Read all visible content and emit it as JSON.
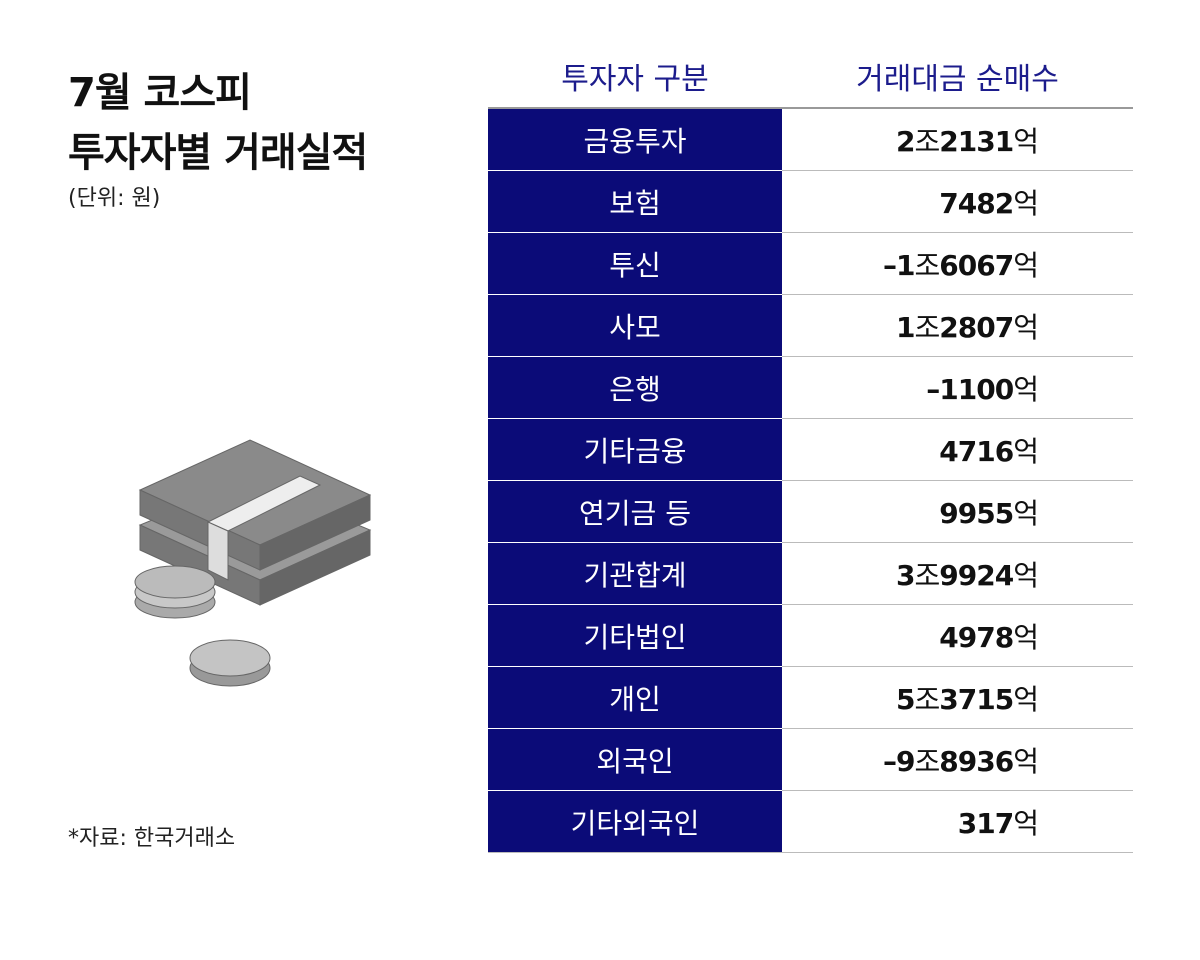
{
  "header": {
    "title_lines": [
      "7월 코스피",
      "투자자별 거래실적"
    ],
    "unit": "(단위: 원)",
    "source": "*자료: 한국거래소"
  },
  "table": {
    "columns": [
      "투자자 구분",
      "거래대금 순매수"
    ],
    "rows": [
      [
        "금융투자",
        "2조2131억"
      ],
      [
        "보험",
        "7482억"
      ],
      [
        "투신",
        "–1조6067억"
      ],
      [
        "사모",
        "1조2807억"
      ],
      [
        "은행",
        "–1100억"
      ],
      [
        "기타금융",
        "4716억"
      ],
      [
        "연기금 등",
        "9955억"
      ],
      [
        "기관합계",
        "3조9924억"
      ],
      [
        "기타법인",
        "4978억"
      ],
      [
        "개인",
        "5조3715억"
      ],
      [
        "외국인",
        "–9조8936억"
      ],
      [
        "기타외국인",
        "317억"
      ]
    ]
  }
}
